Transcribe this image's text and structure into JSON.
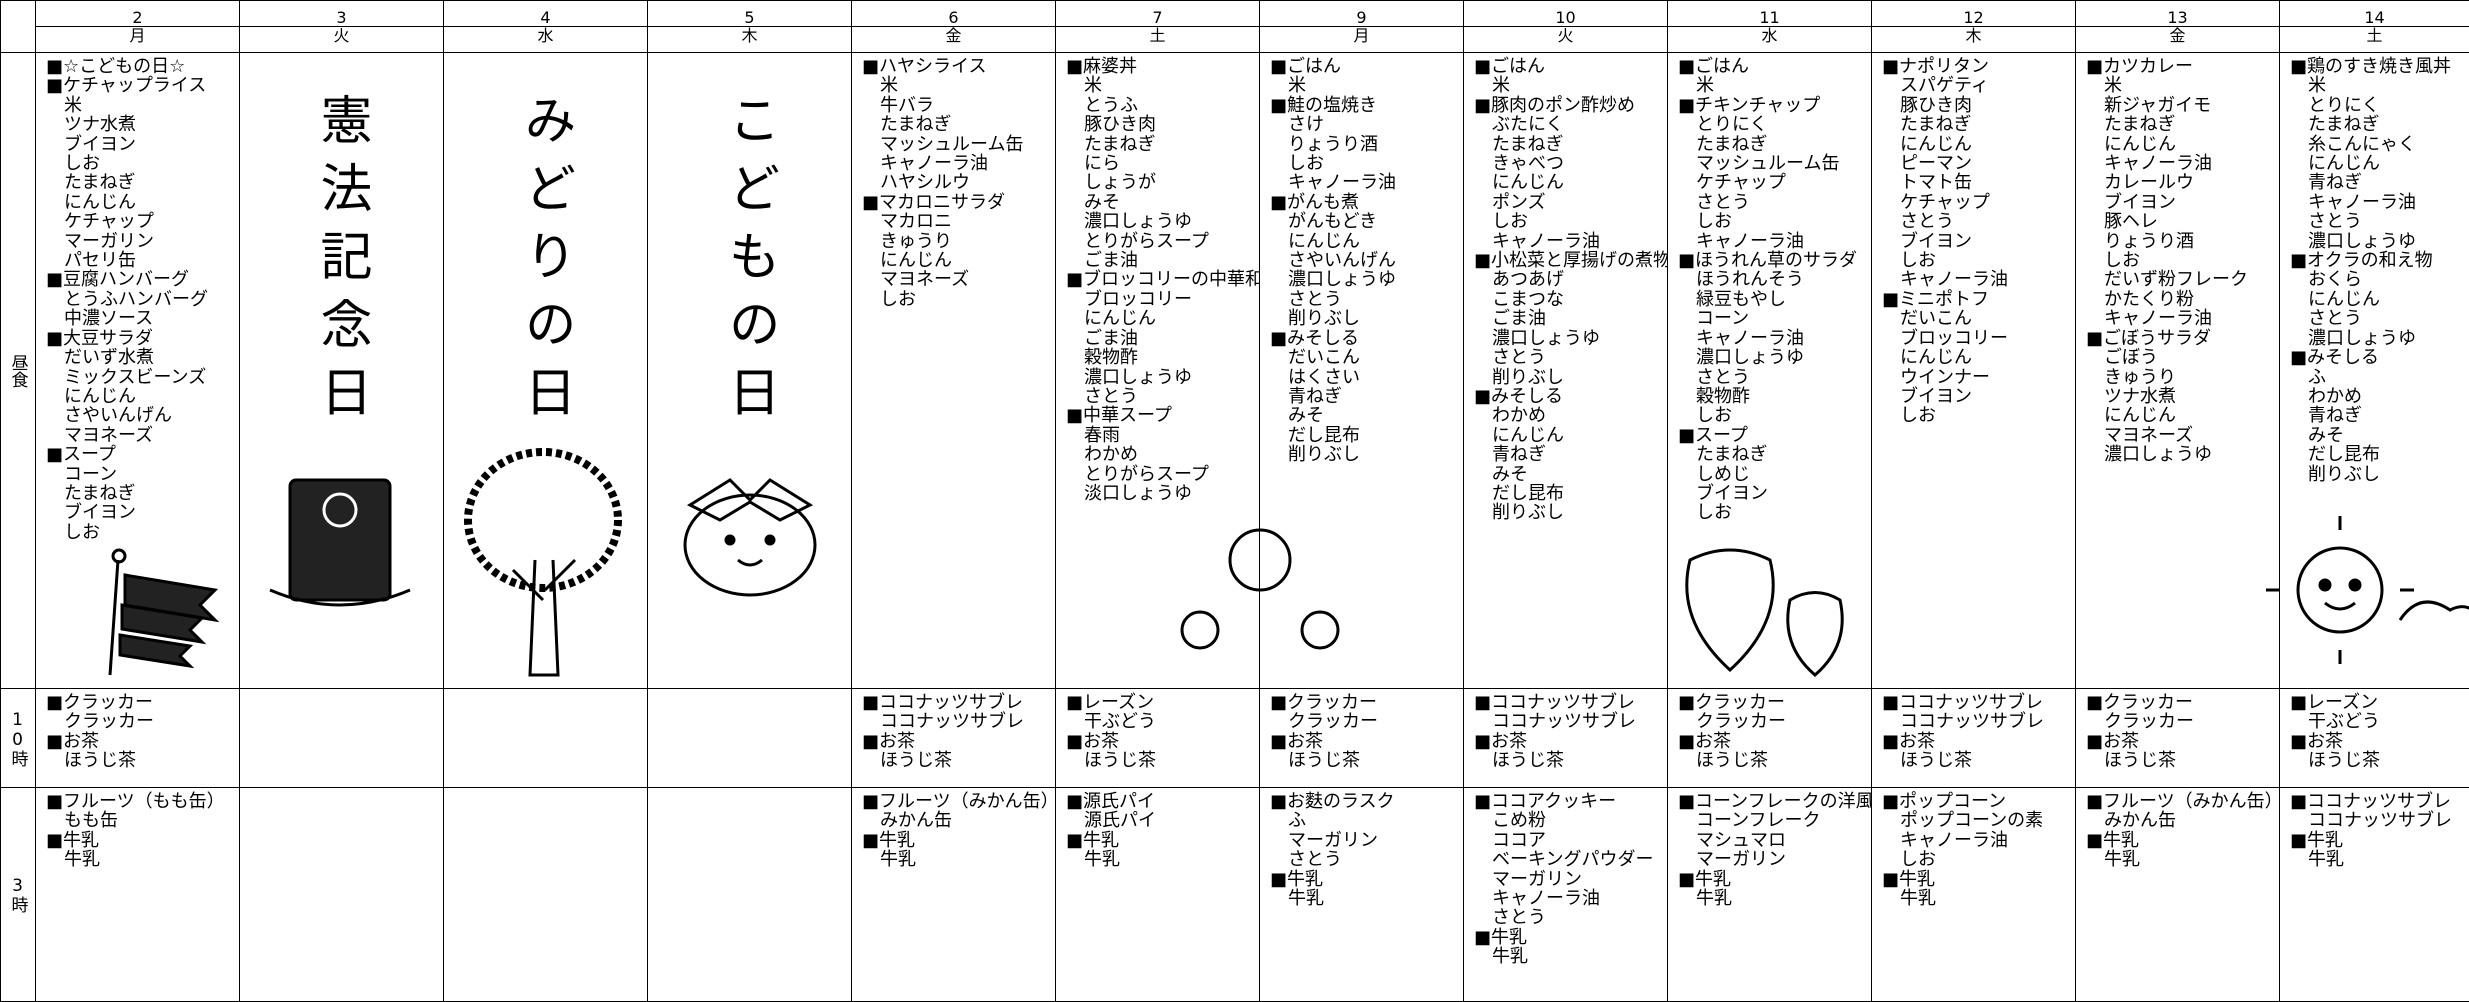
{
  "row_labels": {
    "lunch": "昼食",
    "am": "10時",
    "pm": "3時"
  },
  "days": [
    {
      "date": "2",
      "weekday": "月",
      "lunch": [
        "■☆こどもの日☆",
        "■ケチャップライス",
        "米",
        "ツナ水煮",
        "ブイヨン",
        "しお",
        "たまねぎ",
        "にんじん",
        "ケチャップ",
        "マーガリン",
        "パセリ缶",
        "■豆腐ハンバーグ",
        "とうふハンバーグ",
        "中濃ソース",
        "■大豆サラダ",
        "だいず水煮",
        "ミックスビーンズ",
        "にんじん",
        "さやいんげん",
        "マヨネーズ",
        "■スープ",
        "コーン",
        "たまねぎ",
        "ブイヨン",
        "しお"
      ],
      "am": [
        "■クラッカー",
        "クラッカー",
        "■お茶",
        "ほうじ茶"
      ],
      "pm": [
        "■フルーツ（もも缶）",
        "もも缶",
        "■牛乳",
        "牛乳"
      ]
    },
    {
      "date": "3",
      "weekday": "火",
      "holiday": "憲法記念日"
    },
    {
      "date": "4",
      "weekday": "水",
      "holiday": "みどりの日"
    },
    {
      "date": "5",
      "weekday": "木",
      "holiday": "こどもの日"
    },
    {
      "date": "6",
      "weekday": "金",
      "lunch": [
        "■ハヤシライス",
        "米",
        "牛バラ",
        "たまねぎ",
        "マッシュルーム缶",
        "キャノーラ油",
        "ハヤシルウ",
        "■マカロニサラダ",
        "マカロニ",
        "きゅうり",
        "にんじん",
        "マヨネーズ",
        "しお"
      ],
      "am": [
        "■ココナッツサブレ",
        "ココナッツサブレ",
        "■お茶",
        "ほうじ茶"
      ],
      "pm": [
        "■フルーツ（みかん缶）",
        "みかん缶",
        "■牛乳",
        "牛乳"
      ]
    },
    {
      "date": "7",
      "weekday": "土",
      "lunch": [
        "■麻婆丼",
        "米",
        "とうふ",
        "豚ひき肉",
        "たまねぎ",
        "にら",
        "しょうが",
        "みそ",
        "濃口しょうゆ",
        "とりがらスープ",
        "ごま油",
        "■ブロッコリーの中華和え",
        "ブロッコリー",
        "にんじん",
        "ごま油",
        "穀物酢",
        "濃口しょうゆ",
        "さとう",
        "■中華スープ",
        "春雨",
        "わかめ",
        "とりがらスープ",
        "淡口しょうゆ"
      ],
      "am": [
        "■レーズン",
        "干ぶどう",
        "■お茶",
        "ほうじ茶"
      ],
      "pm": [
        "■源氏パイ",
        "源氏パイ",
        "■牛乳",
        "牛乳"
      ]
    },
    {
      "date": "9",
      "weekday": "月",
      "lunch": [
        "■ごはん",
        "米",
        "■鮭の塩焼き",
        "さけ",
        "りょうり酒",
        "しお",
        "キャノーラ油",
        "■がんも煮",
        "がんもどき",
        "にんじん",
        "さやいんげん",
        "濃口しょうゆ",
        "さとう",
        "削りぶし",
        "■みそしる",
        "だいこん",
        "はくさい",
        "青ねぎ",
        "みそ",
        "だし昆布",
        "削りぶし"
      ],
      "am": [
        "■クラッカー",
        "クラッカー",
        "■お茶",
        "ほうじ茶"
      ],
      "pm": [
        "■お麩のラスク",
        "ふ",
        "マーガリン",
        "さとう",
        "■牛乳",
        "牛乳"
      ]
    },
    {
      "date": "10",
      "weekday": "火",
      "lunch": [
        "■ごはん",
        "米",
        "■豚肉のポン酢炒め",
        "ぶたにく",
        "たまねぎ",
        "きゃべつ",
        "にんじん",
        "ポンズ",
        "しお",
        "キャノーラ油",
        "■小松菜と厚揚げの煮物",
        "あつあげ",
        "こまつな",
        "ごま油",
        "濃口しょうゆ",
        "さとう",
        "削りぶし",
        "■みそしる",
        "わかめ",
        "にんじん",
        "青ねぎ",
        "みそ",
        "だし昆布",
        "削りぶし"
      ],
      "am": [
        "■ココナッツサブレ",
        "ココナッツサブレ",
        "■お茶",
        "ほうじ茶"
      ],
      "pm": [
        "■ココアクッキー",
        "こめ粉",
        "ココア",
        "ベーキングパウダー",
        "マーガリン",
        "キャノーラ油",
        "さとう",
        "■牛乳",
        "牛乳"
      ]
    },
    {
      "date": "11",
      "weekday": "水",
      "lunch": [
        "■ごはん",
        "米",
        "■チキンチャップ",
        "とりにく",
        "たまねぎ",
        "マッシュルーム缶",
        "ケチャップ",
        "さとう",
        "しお",
        "キャノーラ油",
        "■ほうれん草のサラダ",
        "ほうれんそう",
        "緑豆もやし",
        "コーン",
        "キャノーラ油",
        "濃口しょうゆ",
        "さとう",
        "穀物酢",
        "しお",
        "■スープ",
        "たまねぎ",
        "しめじ",
        "ブイヨン",
        "しお"
      ],
      "am": [
        "■クラッカー",
        "クラッカー",
        "■お茶",
        "ほうじ茶"
      ],
      "pm": [
        "■コーンフレークの洋風おこし",
        "コーンフレーク",
        "マシュマロ",
        "マーガリン",
        "■牛乳",
        "牛乳"
      ]
    },
    {
      "date": "12",
      "weekday": "木",
      "lunch": [
        "■ナポリタン",
        "スパゲティ",
        "豚ひき肉",
        "たまねぎ",
        "にんじん",
        "ピーマン",
        "トマト缶",
        "ケチャップ",
        "さとう",
        "ブイヨン",
        "しお",
        "キャノーラ油",
        "■ミニポトフ",
        "だいこん",
        "ブロッコリー",
        "にんじん",
        "ウインナー",
        "ブイヨン",
        "しお"
      ],
      "am": [
        "■ココナッツサブレ",
        "ココナッツサブレ",
        "■お茶",
        "ほうじ茶"
      ],
      "pm": [
        "■ポップコーン",
        "ポップコーンの素",
        "キャノーラ油",
        "しお",
        "■牛乳",
        "牛乳"
      ]
    },
    {
      "date": "13",
      "weekday": "金",
      "lunch": [
        "■カツカレー",
        "米",
        "新ジャガイモ",
        "たまねぎ",
        "にんじん",
        "キャノーラ油",
        "カレールウ",
        "ブイヨン",
        "豚ヘレ",
        "りょうり酒",
        "しお",
        "だいず粉フレーク",
        "かたくり粉",
        "キャノーラ油",
        "■ごぼうサラダ",
        "ごぼう",
        "きゅうり",
        "ツナ水煮",
        "にんじん",
        "マヨネーズ",
        "濃口しょうゆ"
      ],
      "am": [
        "■クラッカー",
        "クラッカー",
        "■お茶",
        "ほうじ茶"
      ],
      "pm": [
        "■フルーツ（みかん缶）",
        "みかん缶",
        "■牛乳",
        "牛乳"
      ]
    },
    {
      "date": "14",
      "weekday": "土",
      "lunch": [
        "■鶏のすき焼き風丼",
        "米",
        "とりにく",
        "たまねぎ",
        "糸こんにゃく",
        "にんじん",
        "青ねぎ",
        "キャノーラ油",
        "さとう",
        "濃口しょうゆ",
        "■オクラの和え物",
        "おくら",
        "にんじん",
        "さとう",
        "濃口しょうゆ",
        "■みそしる",
        "ふ",
        "わかめ",
        "青ねぎ",
        "みそ",
        "だし昆布",
        "削りぶし"
      ],
      "am": [
        "■レーズン",
        "干ぶどう",
        "■お茶",
        "ほうじ茶"
      ],
      "pm": [
        "■ココナッツサブレ",
        "ココナッツサブレ",
        "■牛乳",
        "牛乳"
      ]
    }
  ]
}
